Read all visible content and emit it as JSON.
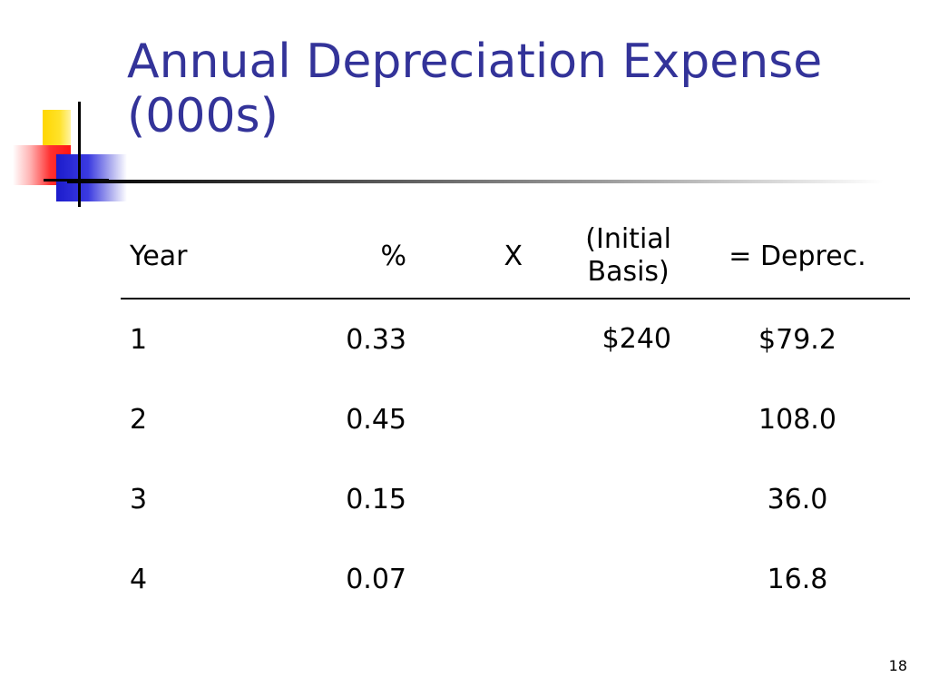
{
  "slide": {
    "title": "Annual Depreciation Expense (000s)",
    "number": "18"
  },
  "colors": {
    "title": "#333399",
    "logo_yellow": "#ffd600",
    "logo_red": "#ff1414",
    "logo_blue": "#1c1ccc"
  },
  "table": {
    "headers": {
      "year": "Year",
      "pct": "%",
      "x": "X",
      "basis_line1": "(Initial",
      "basis_line2": "Basis)",
      "deprec": "= Deprec."
    },
    "rows": [
      {
        "year": "1",
        "pct": "0.33",
        "x": "",
        "basis": "$240",
        "deprec": "$79.2"
      },
      {
        "year": "2",
        "pct": "0.45",
        "x": "",
        "basis": "",
        "deprec": "108.0"
      },
      {
        "year": "3",
        "pct": "0.15",
        "x": "",
        "basis": "",
        "deprec": "36.0"
      },
      {
        "year": "4",
        "pct": "0.07",
        "x": "",
        "basis": "",
        "deprec": "16.8"
      }
    ]
  }
}
